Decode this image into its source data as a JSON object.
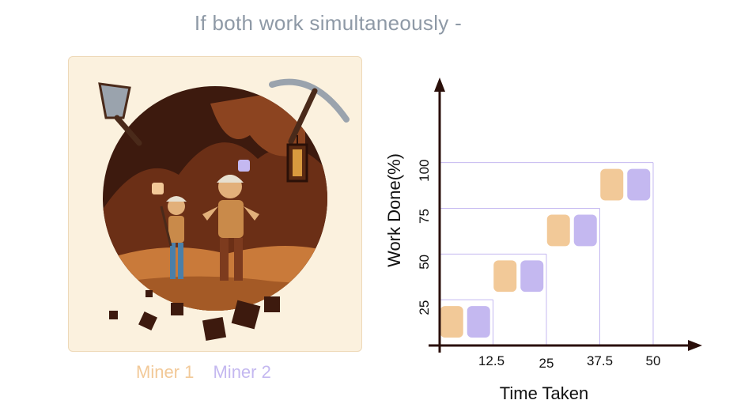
{
  "header": {
    "title": "If both work simultaneously -"
  },
  "legend": {
    "items": [
      {
        "label": "Miner 1",
        "color": "#f2c998"
      },
      {
        "label": "Miner 2",
        "color": "#c4b8f0"
      }
    ]
  },
  "colors": {
    "miner1": "#f2c998",
    "miner2": "#c4b8f0",
    "cave_dark": "#3d1a0e",
    "cave_mid": "#7a3b1c",
    "card_bg": "#fbf1de",
    "axis": "#2a0f0a"
  },
  "chart_data": {
    "type": "bar",
    "xlabel": "Time Taken",
    "ylabel": "Work Done(%)",
    "x_ticks": [
      "12.5",
      "25",
      "37.5",
      "50"
    ],
    "y_ticks": [
      "25",
      "50",
      "75",
      "100"
    ],
    "x_values": [
      12.5,
      25,
      37.5,
      50
    ],
    "y_values": [
      25,
      50,
      75,
      100
    ],
    "xlim": [
      0,
      60
    ],
    "ylim": [
      0,
      150
    ],
    "series": [
      {
        "name": "Miner 1",
        "values": [
          25,
          50,
          75,
          100
        ]
      },
      {
        "name": "Miner 2",
        "values": [
          25,
          50,
          75,
          100
        ]
      }
    ]
  }
}
